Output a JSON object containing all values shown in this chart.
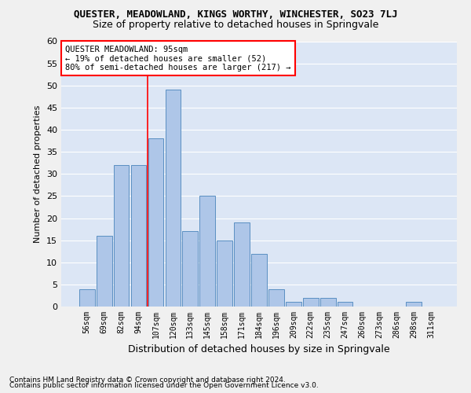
{
  "title_line1": "QUESTER, MEADOWLAND, KINGS WORTHY, WINCHESTER, SO23 7LJ",
  "title_line2": "Size of property relative to detached houses in Springvale",
  "xlabel": "Distribution of detached houses by size in Springvale",
  "ylabel": "Number of detached properties",
  "bar_labels": [
    "56sqm",
    "69sqm",
    "82sqm",
    "94sqm",
    "107sqm",
    "120sqm",
    "133sqm",
    "145sqm",
    "158sqm",
    "171sqm",
    "184sqm",
    "196sqm",
    "209sqm",
    "222sqm",
    "235sqm",
    "247sqm",
    "260sqm",
    "273sqm",
    "286sqm",
    "298sqm",
    "311sqm"
  ],
  "bar_values": [
    4,
    16,
    32,
    32,
    38,
    49,
    17,
    25,
    15,
    19,
    12,
    4,
    1,
    2,
    2,
    1,
    0,
    0,
    0,
    1,
    0
  ],
  "bar_color": "#aec6e8",
  "bar_edge_color": "#5a8fc2",
  "fig_background_color": "#f0f0f0",
  "ax_background_color": "#dce6f5",
  "grid_color": "#ffffff",
  "annotation_text": "QUESTER MEADOWLAND: 95sqm\n← 19% of detached houses are smaller (52)\n80% of semi-detached houses are larger (217) →",
  "redline_x": 3.5,
  "ylim": [
    0,
    60
  ],
  "yticks": [
    0,
    5,
    10,
    15,
    20,
    25,
    30,
    35,
    40,
    45,
    50,
    55,
    60
  ],
  "footnote1": "Contains HM Land Registry data © Crown copyright and database right 2024.",
  "footnote2": "Contains public sector information licensed under the Open Government Licence v3.0."
}
